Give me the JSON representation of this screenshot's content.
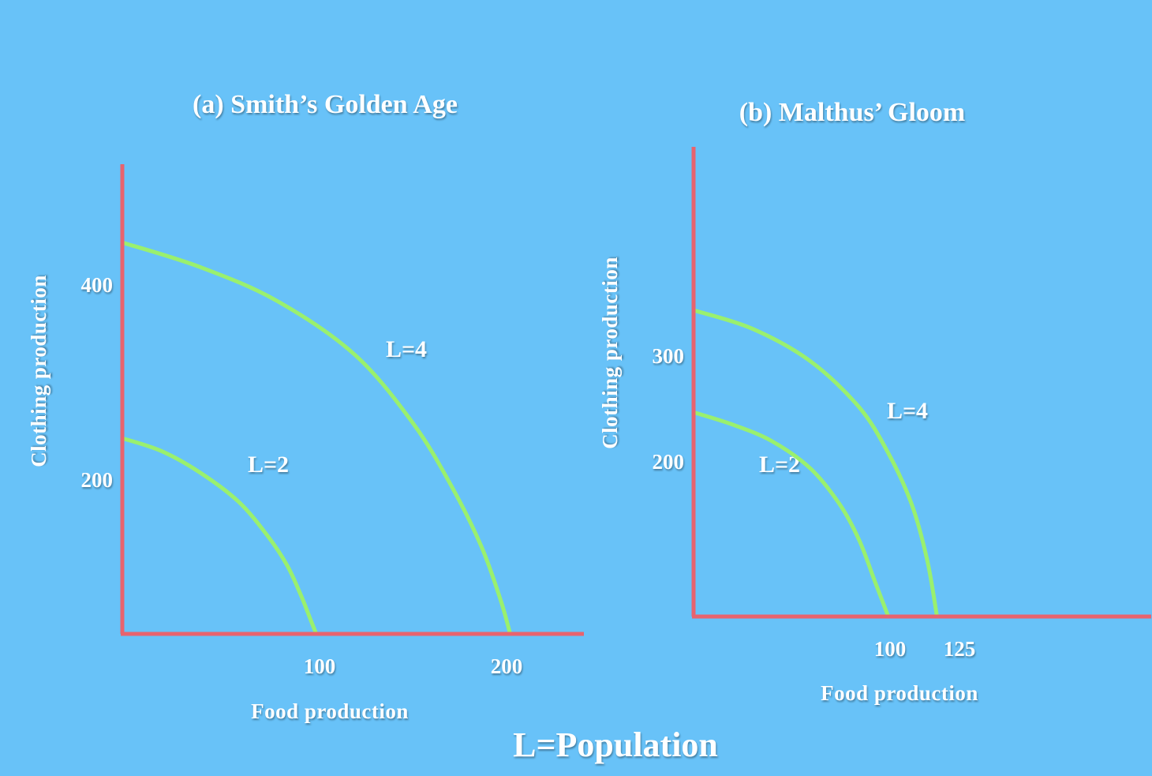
{
  "colors": {
    "background": "#68c2f8",
    "axis": "#e8636e",
    "curve": "#9af06e",
    "text": "#ffffff"
  },
  "footer_label": "L=Population",
  "chart_data": [
    {
      "type": "line",
      "title": "(a) Smith’s Golden Age",
      "xlabel": "Food  production",
      "ylabel": "Clothing production",
      "xlim": [
        0,
        238
      ],
      "ylim": [
        0,
        480
      ],
      "x_ticks": [
        "100",
        "200"
      ],
      "y_ticks": [
        "200",
        "400"
      ],
      "series": [
        {
          "name": "L=2",
          "x": [
            0,
            20,
            40,
            60,
            75,
            85,
            92,
            97,
            100
          ],
          "y": [
            200,
            187,
            165,
            135,
            100,
            70,
            40,
            15,
            0
          ]
        },
        {
          "name": "L=4",
          "x": [
            0,
            40,
            80,
            120,
            150,
            170,
            185,
            195,
            200
          ],
          "y": [
            400,
            375,
            340,
            285,
            215,
            150,
            90,
            35,
            0
          ]
        }
      ]
    },
    {
      "type": "line",
      "title": "(b) Malthus’ Gloom",
      "xlabel": "Food  production",
      "ylabel": "Clothing production",
      "xlim": [
        0,
        235
      ],
      "ylim": [
        0,
        460
      ],
      "x_ticks": [
        "100",
        "125"
      ],
      "y_ticks": [
        "200",
        "300"
      ],
      "series": [
        {
          "name": "L=2",
          "x": [
            0,
            20,
            40,
            60,
            75,
            85,
            93,
            100
          ],
          "y": [
            200,
            188,
            172,
            145,
            110,
            75,
            35,
            0
          ]
        },
        {
          "name": "L=4",
          "x": [
            0,
            30,
            60,
            85,
            100,
            112,
            120,
            125
          ],
          "y": [
            300,
            282,
            250,
            205,
            160,
            110,
            55,
            0
          ]
        }
      ]
    }
  ]
}
